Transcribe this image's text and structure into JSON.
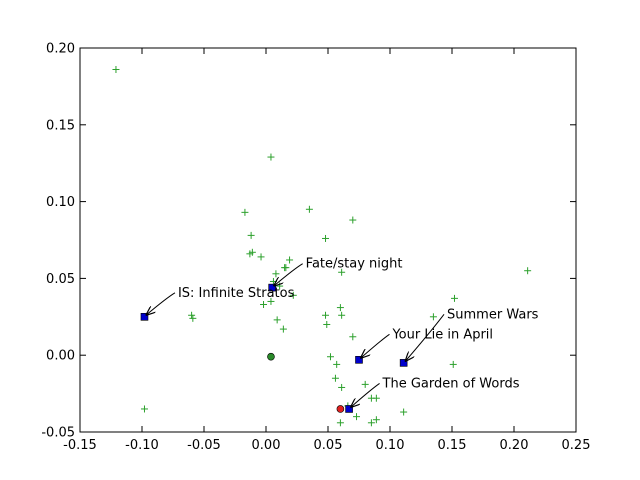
{
  "chart_data": {
    "type": "scatter",
    "title": "",
    "xlabel": "",
    "ylabel": "",
    "xlim": [
      -0.15,
      0.25
    ],
    "ylim": [
      -0.05,
      0.2
    ],
    "xticks": [
      "-0.15",
      "-0.10",
      "-0.05",
      "0.00",
      "0.05",
      "0.10",
      "0.15",
      "0.20",
      "0.25"
    ],
    "yticks": [
      "-0.05",
      "0.00",
      "0.05",
      "0.10",
      "0.15",
      "0.20"
    ],
    "grid": false,
    "colors": {
      "others": "#2ca02c",
      "highlight": "#0000cc",
      "center": "#2a8a2a",
      "query": "#e02020"
    },
    "series": [
      {
        "marker": "plus",
        "points": [
          [
            -0.121,
            0.186
          ],
          [
            0.004,
            0.129
          ],
          [
            -0.017,
            0.093
          ],
          [
            0.035,
            0.095
          ],
          [
            0.07,
            0.088
          ],
          [
            -0.012,
            0.078
          ],
          [
            0.048,
            0.076
          ],
          [
            -0.011,
            0.067
          ],
          [
            -0.013,
            0.066
          ],
          [
            -0.004,
            0.064
          ],
          [
            0.019,
            0.062
          ],
          [
            0.015,
            0.057
          ],
          [
            0.016,
            0.057
          ],
          [
            0.061,
            0.054
          ],
          [
            0.008,
            0.053
          ],
          [
            0.211,
            0.055
          ],
          [
            0.006,
            0.048
          ],
          [
            0.011,
            0.045
          ],
          [
            0.022,
            0.039
          ],
          [
            0.152,
            0.037
          ],
          [
            0.004,
            0.035
          ],
          [
            -0.002,
            0.033
          ],
          [
            0.06,
            0.031
          ],
          [
            0.061,
            0.026
          ],
          [
            0.048,
            0.026
          ],
          [
            0.135,
            0.025
          ],
          [
            -0.06,
            0.026
          ],
          [
            -0.059,
            0.024
          ],
          [
            0.009,
            0.023
          ],
          [
            0.049,
            0.02
          ],
          [
            0.014,
            0.017
          ],
          [
            0.07,
            0.012
          ],
          [
            0.052,
            -0.001
          ],
          [
            0.057,
            -0.006
          ],
          [
            0.151,
            -0.006
          ],
          [
            0.056,
            -0.015
          ],
          [
            0.061,
            -0.021
          ],
          [
            0.08,
            -0.019
          ],
          [
            0.085,
            -0.028
          ],
          [
            0.089,
            -0.028
          ],
          [
            0.066,
            -0.033
          ],
          [
            -0.098,
            -0.035
          ],
          [
            0.073,
            -0.04
          ],
          [
            0.089,
            -0.042
          ],
          [
            0.06,
            -0.044
          ],
          [
            0.085,
            -0.044
          ],
          [
            0.111,
            -0.037
          ]
        ]
      },
      {
        "marker": "square",
        "points": [
          [
            -0.098,
            0.025
          ],
          [
            0.005,
            0.044
          ],
          [
            0.075,
            -0.003
          ],
          [
            0.111,
            -0.005
          ],
          [
            0.067,
            -0.035
          ]
        ]
      },
      {
        "marker": "circle",
        "points": [
          [
            0.004,
            -0.001
          ]
        ]
      },
      {
        "marker": "circle",
        "points": [
          [
            0.06,
            -0.035
          ]
        ]
      }
    ],
    "annotations": [
      {
        "text": "IS: Infinite Stratos",
        "point": [
          -0.098,
          0.025
        ],
        "text_at": [
          -0.071,
          0.038
        ]
      },
      {
        "text": "Fate/stay night",
        "point": [
          0.005,
          0.044
        ],
        "text_at": [
          0.032,
          0.057
        ]
      },
      {
        "text": "Summer Wars",
        "point": [
          0.111,
          -0.005
        ],
        "text_at": [
          0.146,
          0.024
        ]
      },
      {
        "text": "Your Lie in April",
        "point": [
          0.075,
          -0.003
        ],
        "text_at": [
          0.102,
          0.011
        ]
      },
      {
        "text": "The Garden of Words",
        "point": [
          0.067,
          -0.035
        ],
        "text_at": [
          0.094,
          -0.021
        ]
      }
    ]
  }
}
